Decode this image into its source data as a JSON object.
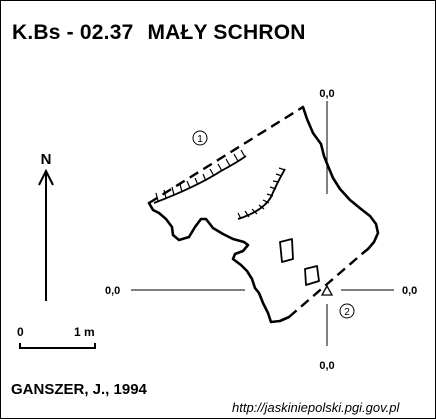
{
  "title": {
    "code": "K.Bs - 02.37",
    "name": "MAŁY SCHRON"
  },
  "north_label": "N",
  "scale_bar": {
    "start_label": "0",
    "end_label": "1 m"
  },
  "profile_markers": {
    "profile_1": "1",
    "profile_2": "2"
  },
  "reference_cross": {
    "top_label": "0,0",
    "bottom_label": "0,0",
    "left_label": "0,0",
    "right_label": "0,0"
  },
  "author": "GANSZER, J., 1994",
  "source": "http://jaskiniepolski.pgi.gov.pl"
}
